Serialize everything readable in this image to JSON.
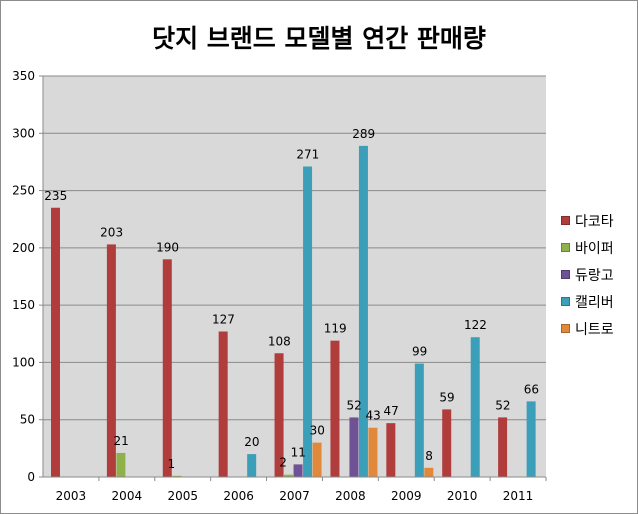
{
  "chart_data": {
    "type": "bar",
    "title": "닷지 브랜드 모델별 연간 판매량",
    "xlabel": "",
    "ylabel": "",
    "categories": [
      "2003",
      "2004",
      "2005",
      "2006",
      "2007",
      "2008",
      "2009",
      "2010",
      "2011"
    ],
    "ylim": [
      0,
      350
    ],
    "yticks": [
      0,
      50,
      100,
      150,
      200,
      250,
      300,
      350
    ],
    "grid": true,
    "legend_position": "right",
    "series": [
      {
        "name": "다코타",
        "color": "#b03c3c",
        "values": [
          235,
          203,
          190,
          127,
          108,
          119,
          47,
          59,
          52
        ]
      },
      {
        "name": "바이퍼",
        "color": "#8fb04a",
        "values": [
          0,
          21,
          1,
          0,
          2,
          0,
          0,
          0,
          0
        ]
      },
      {
        "name": "듀랑고",
        "color": "#6f5195",
        "values": [
          0,
          0,
          0,
          0,
          11,
          52,
          0,
          0,
          0
        ]
      },
      {
        "name": "캘리버",
        "color": "#3b9fba",
        "values": [
          0,
          0,
          0,
          20,
          271,
          289,
          99,
          122,
          66
        ]
      },
      {
        "name": "니트로",
        "color": "#e0893a",
        "values": [
          0,
          0,
          0,
          0,
          30,
          43,
          8,
          0,
          0
        ]
      }
    ]
  }
}
